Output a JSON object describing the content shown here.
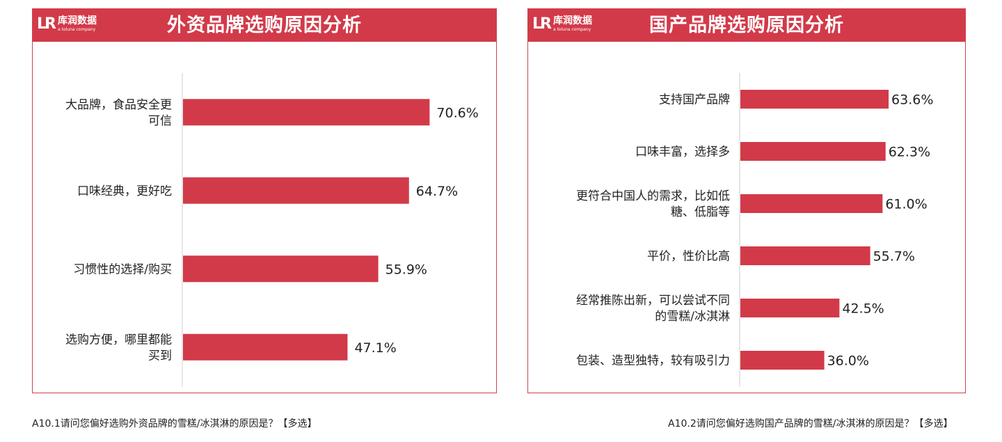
{
  "logo": {
    "name": "库润数据",
    "sub": "a toluna company"
  },
  "panels": [
    {
      "title": "外资品牌选购原因分析",
      "caption": "A10.1请问您偏好选购外资品牌的雪糕/冰淇淋的原因是？【多选】"
    },
    {
      "title": "国产品牌选购原因分析",
      "caption": "A10.2请问您偏好选购国产品牌的雪糕/冰淇淋的原因是？【多选】"
    }
  ],
  "colors": {
    "bar": "#d23a49",
    "header": "#d23a49",
    "axis": "#cccccc"
  },
  "chart_data": [
    {
      "type": "bar",
      "orientation": "horizontal",
      "title": "外资品牌选购原因分析",
      "unit": "%",
      "categories": [
        [
          "大品牌，食品安全更",
          "可信"
        ],
        [
          "口味经典，更好吃"
        ],
        [
          "习惯性的选择/购买"
        ],
        [
          "选购方便，哪里都能",
          "买到"
        ]
      ],
      "values": [
        70.6,
        64.7,
        55.9,
        47.1
      ],
      "labels": [
        "70.6%",
        "64.7%",
        "55.9%",
        "47.1%"
      ],
      "xlim": [
        0,
        100
      ],
      "legend": "none",
      "grid": false
    },
    {
      "type": "bar",
      "orientation": "horizontal",
      "title": "国产品牌选购原因分析",
      "unit": "%",
      "categories": [
        [
          "支持国产品牌"
        ],
        [
          "口味丰富，选择多"
        ],
        [
          "更符合中国人的需求，比如低",
          "糖、低脂等"
        ],
        [
          "平价，性价比高"
        ],
        [
          "经常推陈出新，可以尝试不同",
          "的雪糕/冰淇淋"
        ],
        [
          "包装、造型独特，较有吸引力"
        ]
      ],
      "values": [
        63.6,
        62.3,
        61.0,
        55.7,
        42.5,
        36.0
      ],
      "labels": [
        "63.6%",
        "62.3%",
        "61.0%",
        "55.7%",
        "42.5%",
        "36.0%"
      ],
      "xlim": [
        0,
        100
      ],
      "legend": "none",
      "grid": false
    }
  ]
}
